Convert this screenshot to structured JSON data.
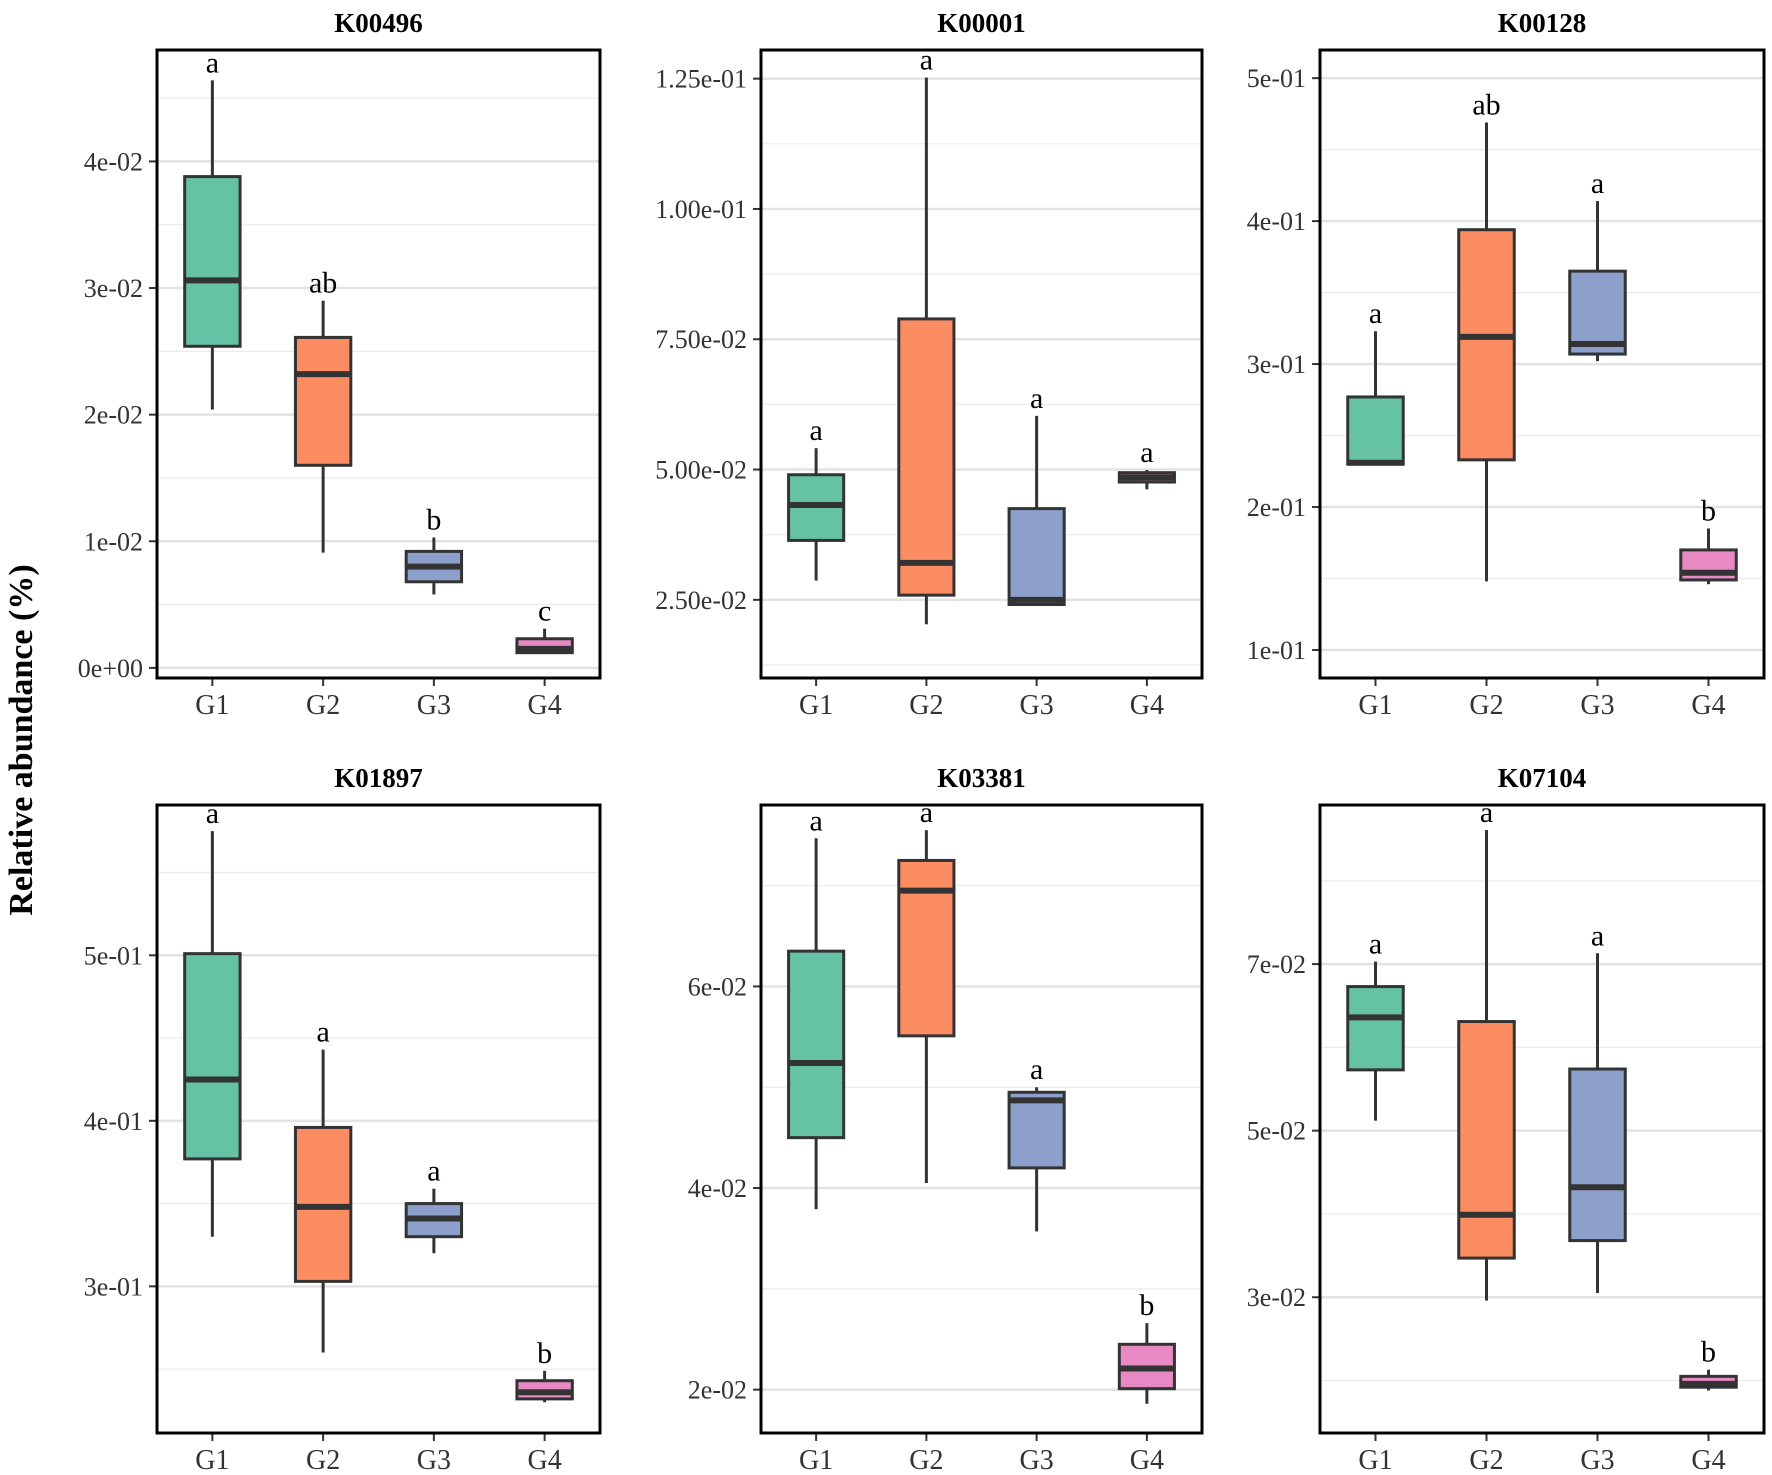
{
  "figure": {
    "ylabel": "Relative abundance (%)",
    "colors": {
      "G1": "#66c2a5",
      "G2": "#fc8d62",
      "G3": "#8da0cb",
      "G4": "#e78ac3"
    }
  },
  "chart_data": [
    {
      "type": "box",
      "title": "K00496",
      "categories": [
        "G1",
        "G2",
        "G3",
        "G4"
      ],
      "ylim": [
        -0.0008,
        0.0488
      ],
      "yticks": [
        0,
        0.01,
        0.02,
        0.03,
        0.04
      ],
      "ytick_labels": [
        "0e+00",
        "1e-02",
        "2e-02",
        "3e-02",
        "4e-02"
      ],
      "boxes": [
        {
          "group": "G1",
          "min": 0.0204,
          "q1": 0.0254,
          "median": 0.0306,
          "q3": 0.0388,
          "max": 0.0464,
          "letter": "a"
        },
        {
          "group": "G2",
          "min": 0.0091,
          "q1": 0.016,
          "median": 0.0232,
          "q3": 0.0261,
          "max": 0.029,
          "letter": "ab"
        },
        {
          "group": "G3",
          "min": 0.0058,
          "q1": 0.0068,
          "median": 0.008,
          "q3": 0.0092,
          "max": 0.0103,
          "letter": "b"
        },
        {
          "group": "G4",
          "min": 0.0011,
          "q1": 0.0012,
          "median": 0.0015,
          "q3": 0.0023,
          "max": 0.0031,
          "letter": "c"
        }
      ]
    },
    {
      "type": "box",
      "title": "K00001",
      "categories": [
        "G1",
        "G2",
        "G3",
        "G4"
      ],
      "ylim": [
        0.01,
        0.1305
      ],
      "yticks": [
        0.025,
        0.05,
        0.075,
        0.1,
        0.125
      ],
      "ytick_labels": [
        "2.50e-02",
        "5.00e-02",
        "7.50e-02",
        "1.00e-01",
        "1.25e-01"
      ],
      "boxes": [
        {
          "group": "G1",
          "min": 0.0287,
          "q1": 0.0364,
          "median": 0.0432,
          "q3": 0.049,
          "max": 0.0541,
          "letter": "a"
        },
        {
          "group": "G2",
          "min": 0.0203,
          "q1": 0.0259,
          "median": 0.0321,
          "q3": 0.0789,
          "max": 0.1252,
          "letter": "a"
        },
        {
          "group": "G3",
          "min": 0.0239,
          "q1": 0.0241,
          "median": 0.025,
          "q3": 0.0425,
          "max": 0.0603,
          "letter": "a"
        },
        {
          "group": "G4",
          "min": 0.0462,
          "q1": 0.0476,
          "median": 0.0485,
          "q3": 0.0494,
          "max": 0.0499,
          "letter": "a"
        }
      ]
    },
    {
      "type": "box",
      "title": "K00128",
      "categories": [
        "G1",
        "G2",
        "G3",
        "G4"
      ],
      "ylim": [
        0.0804,
        0.5197
      ],
      "yticks": [
        0.1,
        0.2,
        0.3,
        0.4,
        0.5
      ],
      "ytick_labels": [
        "1e-01",
        "2e-01",
        "3e-01",
        "4e-01",
        "5e-01"
      ],
      "boxes": [
        {
          "group": "G1",
          "min": 0.229,
          "q1": 0.23,
          "median": 0.231,
          "q3": 0.277,
          "max": 0.323,
          "letter": "a"
        },
        {
          "group": "G2",
          "min": 0.148,
          "q1": 0.233,
          "median": 0.319,
          "q3": 0.394,
          "max": 0.469,
          "letter": "ab"
        },
        {
          "group": "G3",
          "min": 0.302,
          "q1": 0.307,
          "median": 0.314,
          "q3": 0.365,
          "max": 0.414,
          "letter": "a"
        },
        {
          "group": "G4",
          "min": 0.146,
          "q1": 0.149,
          "median": 0.154,
          "q3": 0.17,
          "max": 0.185,
          "letter": "b"
        }
      ]
    },
    {
      "type": "box",
      "title": "K01897",
      "categories": [
        "G1",
        "G2",
        "G3",
        "G4"
      ],
      "ylim": [
        0.2114,
        0.5908
      ],
      "yticks": [
        0.3,
        0.4,
        0.5
      ],
      "ytick_labels": [
        "3e-01",
        "4e-01",
        "5e-01"
      ],
      "boxes": [
        {
          "group": "G1",
          "min": 0.33,
          "q1": 0.377,
          "median": 0.425,
          "q3": 0.501,
          "max": 0.575,
          "letter": "a"
        },
        {
          "group": "G2",
          "min": 0.26,
          "q1": 0.303,
          "median": 0.348,
          "q3": 0.396,
          "max": 0.443,
          "letter": "a"
        },
        {
          "group": "G3",
          "min": 0.32,
          "q1": 0.33,
          "median": 0.341,
          "q3": 0.35,
          "max": 0.359,
          "letter": "a"
        },
        {
          "group": "G4",
          "min": 0.23,
          "q1": 0.232,
          "median": 0.236,
          "q3": 0.243,
          "max": 0.249,
          "letter": "b"
        }
      ]
    },
    {
      "type": "box",
      "title": "K03381",
      "categories": [
        "G1",
        "G2",
        "G3",
        "G4"
      ],
      "ylim": [
        0.0157,
        0.078
      ],
      "yticks": [
        0.02,
        0.04,
        0.06
      ],
      "ytick_labels": [
        "2e-02",
        "4e-02",
        "6e-02"
      ],
      "boxes": [
        {
          "group": "G1",
          "min": 0.0379,
          "q1": 0.045,
          "median": 0.0524,
          "q3": 0.0635,
          "max": 0.0747,
          "letter": "a"
        },
        {
          "group": "G2",
          "min": 0.0405,
          "q1": 0.0551,
          "median": 0.0695,
          "q3": 0.0725,
          "max": 0.0755,
          "letter": "a"
        },
        {
          "group": "G3",
          "min": 0.0357,
          "q1": 0.042,
          "median": 0.0487,
          "q3": 0.0495,
          "max": 0.05,
          "letter": "a"
        },
        {
          "group": "G4",
          "min": 0.0186,
          "q1": 0.0201,
          "median": 0.0221,
          "q3": 0.0245,
          "max": 0.0266,
          "letter": "b"
        }
      ]
    },
    {
      "type": "box",
      "title": "K07104",
      "categories": [
        "G1",
        "G2",
        "G3",
        "G4"
      ],
      "ylim": [
        0.0137,
        0.0891
      ],
      "yticks": [
        0.03,
        0.05,
        0.07
      ],
      "ytick_labels": [
        "3e-02",
        "5e-02",
        "7e-02"
      ],
      "boxes": [
        {
          "group": "G1",
          "min": 0.0512,
          "q1": 0.0573,
          "median": 0.0636,
          "q3": 0.0673,
          "max": 0.0703,
          "letter": "a"
        },
        {
          "group": "G2",
          "min": 0.0296,
          "q1": 0.0347,
          "median": 0.0399,
          "q3": 0.0631,
          "max": 0.0861,
          "letter": "a"
        },
        {
          "group": "G3",
          "min": 0.0305,
          "q1": 0.0368,
          "median": 0.0432,
          "q3": 0.0574,
          "max": 0.0713,
          "letter": "a"
        },
        {
          "group": "G4",
          "min": 0.0188,
          "q1": 0.0192,
          "median": 0.0196,
          "q3": 0.0205,
          "max": 0.0213,
          "letter": "b"
        }
      ]
    }
  ]
}
